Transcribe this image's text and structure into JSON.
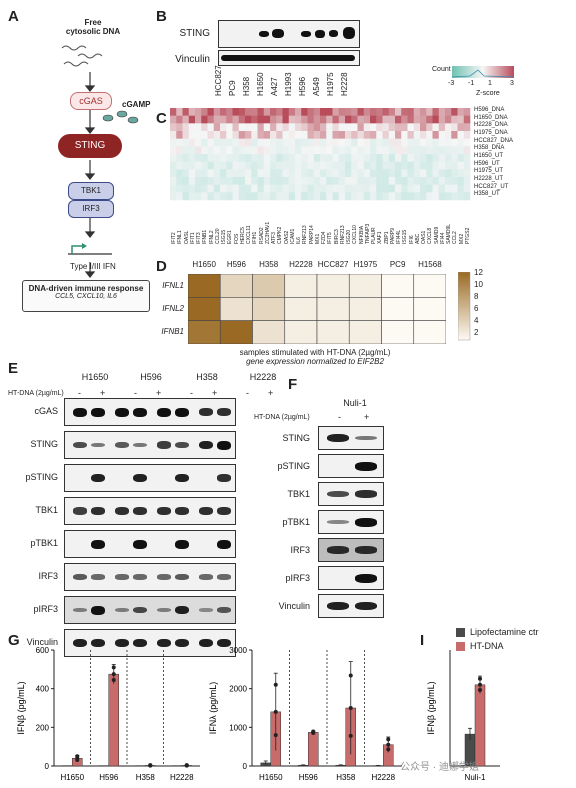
{
  "panels": {
    "A": "A",
    "B": "B",
    "C": "C",
    "D": "D",
    "E": "E",
    "F": "F",
    "G": "G",
    "H": "H",
    "I": "I"
  },
  "panelA": {
    "title_line1": "Free",
    "title_line2": "cytosolic DNA",
    "cgas": "cGAS",
    "cgamp": "cGAMP",
    "sting": "STING",
    "tbk1": "TBK1",
    "irf3": "IRF3",
    "ifn": "Type I/III IFN",
    "response_title": "DNA-driven immune response",
    "response_genes": "CCL5, CXCL10, IL6"
  },
  "panelB": {
    "row1": "STING",
    "row2": "Vinculin",
    "lanes": [
      "HCC827",
      "PC9",
      "H358",
      "H1650",
      "A427",
      "H1993",
      "H596",
      "A549",
      "H1975",
      "H2228"
    ]
  },
  "panelC": {
    "legend_title": "Count",
    "legend_ticks": [
      "-3",
      "-1",
      "1",
      "3"
    ],
    "legend_label": "Z-score",
    "rows": [
      "H596_DNA",
      "H1650_DNA",
      "H2228_DNA",
      "H1975_DNA",
      "HCC827_DNA",
      "H358_DNA",
      "H1650_UT",
      "H596_UT",
      "H1975_UT",
      "H2228_UT",
      "HCC827_UT",
      "H358_UT"
    ],
    "cols": [
      "IFIT2",
      "IFNL1",
      "OASL",
      "IFIT1",
      "IFIT3",
      "IFNB1",
      "IFNL2",
      "CCL20",
      "ISG15",
      "EGR1",
      "FOS",
      "HERC5",
      "CXCL11",
      "IFIH1",
      "RSAD2",
      "ZC3HAV1",
      "ATF3",
      "CMPK2",
      "OAS2",
      "ICAM1",
      "IL6",
      "RNF213",
      "PARP14",
      "MX1",
      "FZD4",
      "IFIT5",
      "BIRC3",
      "RNF213",
      "ISG20",
      "CXCL10",
      "NFKBIA",
      "TNFAIP3",
      "PLAUR",
      "XAF1",
      "ZBP1",
      "PARP9",
      "IFI44L",
      "ISG15",
      "IFI6",
      "ABC",
      "OAS1",
      "CXCL8",
      "SAMD9",
      "IFI44",
      "SAMD9L",
      "CCL2",
      "MX2",
      "PTGS2"
    ]
  },
  "panelD": {
    "cols": [
      "H1650",
      "H596",
      "H358",
      "H2228",
      "HCC827",
      "H1975",
      "PC9",
      "H1568"
    ],
    "rows": [
      "IFNL1",
      "IFNL2",
      "IFNB1"
    ],
    "values": [
      [
        12,
        3,
        4,
        1,
        1,
        1,
        0,
        0
      ],
      [
        12,
        2,
        3,
        1,
        1,
        1,
        0,
        0
      ],
      [
        11,
        12,
        2,
        1,
        1,
        1,
        0,
        0
      ]
    ],
    "scale_ticks": [
      "12",
      "10",
      "8",
      "6",
      "4",
      "2"
    ],
    "caption1": "samples stimulated with HT-DNA (2µg/mL)",
    "caption2": "gene expression normalized to EIF2B2"
  },
  "panelE": {
    "lines": [
      "H1650",
      "H596",
      "H358",
      "H2228"
    ],
    "treatment": "HT-DNA (2µg/mL)",
    "signs": [
      "-",
      "+"
    ],
    "rows": [
      "cGAS",
      "STING",
      "pSTING",
      "TBK1",
      "pTBK1",
      "IRF3",
      "pIRF3",
      "Vinculin"
    ]
  },
  "panelF": {
    "line": "Nuli-1",
    "treatment": "HT-DNA (2µg/mL)",
    "signs": [
      "-",
      "+"
    ],
    "rows": [
      "STING",
      "pSTING",
      "TBK1",
      "pTBK1",
      "IRF3",
      "pIRF3",
      "Vinculin"
    ]
  },
  "panelG": {
    "ylabel": "IFNβ (pg/mL)",
    "yticks": [
      "0",
      "200",
      "400",
      "600"
    ],
    "groups": [
      "H1650",
      "H596",
      "H358",
      "H2228"
    ]
  },
  "panelH": {
    "ylabel": "IFNλ (pg/mL)",
    "yticks": [
      "0",
      "1000",
      "2000",
      "3000"
    ],
    "groups": [
      "H1650",
      "H596",
      "H358",
      "H2228"
    ]
  },
  "panelI": {
    "ylabel": "IFNβ (pg/mL)",
    "group": "Nuli-1",
    "legend": [
      "Lipofectamine ctr",
      "HT-DNA"
    ]
  },
  "watermark": "公众号 · 迪娜学姐",
  "colors": {
    "ctrl": "#4a4a4a",
    "dna": "#c86b6b",
    "sting": "#9b2c2c",
    "blue": "#c9cfe8",
    "heat_hi": "#a9742a"
  },
  "chart_data": [
    {
      "type": "bar",
      "title": "",
      "ylabel": "IFNβ (pg/mL)",
      "ylim": [
        0,
        600
      ],
      "categories": [
        "H1650",
        "H596",
        "H358",
        "H2228"
      ],
      "series": [
        {
          "name": "Lipofectamine ctr",
          "values": [
            2,
            2,
            2,
            2
          ]
        },
        {
          "name": "HT-DNA",
          "values": [
            40,
            475,
            3,
            3
          ]
        }
      ],
      "errors": [
        [
          0,
          0,
          0,
          0
        ],
        [
          15,
          50,
          2,
          2
        ]
      ]
    },
    {
      "type": "bar",
      "title": "",
      "ylabel": "IFNλ (pg/mL)",
      "ylim": [
        0,
        3000
      ],
      "categories": [
        "H1650",
        "H596",
        "H358",
        "H2228"
      ],
      "series": [
        {
          "name": "Lipofectamine ctr",
          "values": [
            80,
            20,
            20,
            10
          ]
        },
        {
          "name": "HT-DNA",
          "values": [
            1400,
            870,
            1500,
            550
          ]
        }
      ],
      "errors": [
        [
          50,
          10,
          10,
          5
        ],
        [
          1000,
          30,
          1200,
          200
        ]
      ]
    },
    {
      "type": "bar",
      "title": "",
      "ylabel": "IFNβ (pg/mL)",
      "ylim": [
        0,
        40
      ],
      "categories": [
        "Nuli-1"
      ],
      "series": [
        {
          "name": "Lipofectamine ctr",
          "values": [
            11
          ]
        },
        {
          "name": "HT-DNA",
          "values": [
            28
          ]
        }
      ],
      "errors": [
        [
          2
        ],
        [
          3
        ]
      ]
    }
  ]
}
